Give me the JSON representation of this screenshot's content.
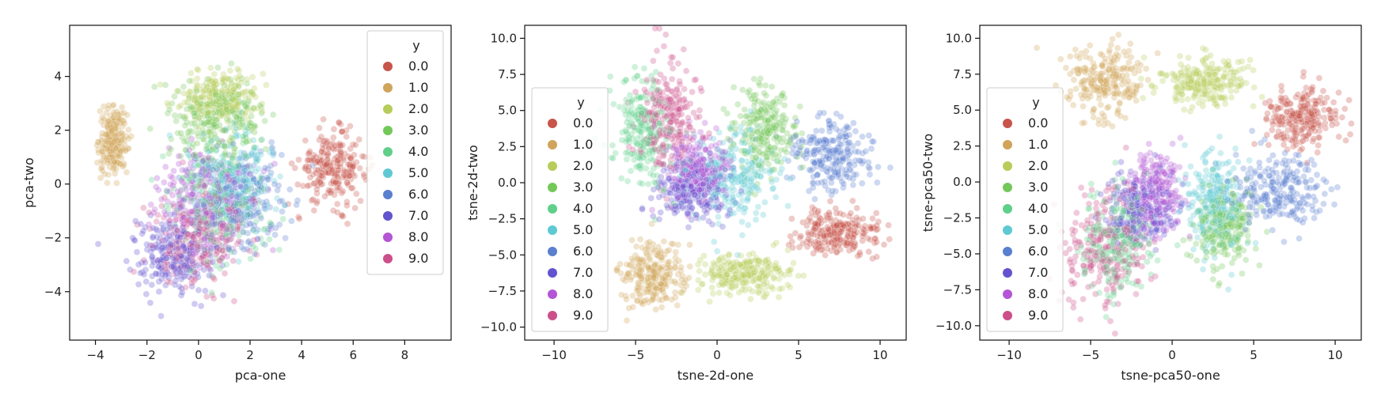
{
  "legend": {
    "title": "y",
    "labels": [
      "0.0",
      "1.0",
      "2.0",
      "3.0",
      "4.0",
      "5.0",
      "6.0",
      "7.0",
      "8.0",
      "9.0"
    ],
    "colors": [
      "#c8544a",
      "#d0a45a",
      "#b7cc5a",
      "#74c85a",
      "#5fcf8a",
      "#5ec9d3",
      "#5a7fcf",
      "#6353cf",
      "#b355d4",
      "#cc4f8a"
    ]
  },
  "chart_data": [
    {
      "type": "scatter",
      "title": "",
      "xlabel": "pca-one",
      "ylabel": "pca-two",
      "xlim": [
        -5,
        9.8
      ],
      "ylim": [
        -5.8,
        5.9
      ],
      "xticks": [
        -4,
        -2,
        0,
        2,
        4,
        6,
        8
      ],
      "yticks": [
        -4,
        -2,
        0,
        2,
        4
      ],
      "legend_position": "top-right",
      "point_alpha": 0.3,
      "series": [
        {
          "name": "0.0",
          "center": [
            5.2,
            0.6
          ],
          "spread": [
            1.1,
            1.1
          ]
        },
        {
          "name": "1.0",
          "center": [
            -3.3,
            1.6
          ],
          "spread": [
            0.45,
            1.0
          ]
        },
        {
          "name": "2.0",
          "center": [
            0.8,
            3.2
          ],
          "spread": [
            1.3,
            0.9
          ]
        },
        {
          "name": "3.0",
          "center": [
            0.8,
            2.4
          ],
          "spread": [
            1.4,
            1.3
          ]
        },
        {
          "name": "4.0",
          "center": [
            0.8,
            -0.8
          ],
          "spread": [
            1.6,
            1.8
          ]
        },
        {
          "name": "5.0",
          "center": [
            1.3,
            0.2
          ],
          "spread": [
            1.5,
            1.6
          ]
        },
        {
          "name": "6.0",
          "center": [
            1.6,
            -0.6
          ],
          "spread": [
            1.5,
            1.5
          ]
        },
        {
          "name": "7.0",
          "center": [
            -1.0,
            -2.6
          ],
          "spread": [
            1.3,
            1.2
          ]
        },
        {
          "name": "8.0",
          "center": [
            0.2,
            -0.6
          ],
          "spread": [
            1.5,
            1.6
          ]
        },
        {
          "name": "9.0",
          "center": [
            0.0,
            -2.0
          ],
          "spread": [
            1.5,
            1.5
          ]
        }
      ]
    },
    {
      "type": "scatter",
      "title": "",
      "xlabel": "tsne-2d-one",
      "ylabel": "tsne-2d-two",
      "xlim": [
        -11.8,
        11.6
      ],
      "ylim": [
        -10.9,
        10.9
      ],
      "xticks": [
        -10,
        -5,
        0,
        5,
        10
      ],
      "yticks": [
        -10.0,
        -7.5,
        -5.0,
        -2.5,
        0.0,
        2.5,
        5.0,
        7.5,
        10.0
      ],
      "legend_position": "center-left",
      "point_alpha": 0.3,
      "series": [
        {
          "name": "0.0",
          "center": [
            7.5,
            -3.5
          ],
          "spread": [
            2.1,
            1.4
          ]
        },
        {
          "name": "1.0",
          "center": [
            -4.0,
            -6.5
          ],
          "spread": [
            1.6,
            1.9
          ]
        },
        {
          "name": "2.0",
          "center": [
            1.8,
            -6.3
          ],
          "spread": [
            2.3,
            1.1
          ]
        },
        {
          "name": "3.0",
          "center": [
            2.8,
            3.5
          ],
          "spread": [
            1.6,
            2.5
          ]
        },
        {
          "name": "4.0",
          "center": [
            -4.5,
            3.5
          ],
          "spread": [
            1.5,
            3.0
          ]
        },
        {
          "name": "5.0",
          "center": [
            1.0,
            0.5
          ],
          "spread": [
            2.3,
            3.0
          ]
        },
        {
          "name": "6.0",
          "center": [
            7.0,
            2.0
          ],
          "spread": [
            2.2,
            2.1
          ]
        },
        {
          "name": "7.0",
          "center": [
            -1.5,
            -0.5
          ],
          "spread": [
            1.8,
            2.0
          ]
        },
        {
          "name": "8.0",
          "center": [
            -1.2,
            0.8
          ],
          "spread": [
            1.6,
            2.1
          ]
        },
        {
          "name": "9.0",
          "center": [
            -3.0,
            4.5
          ],
          "spread": [
            1.6,
            3.3
          ]
        }
      ]
    },
    {
      "type": "scatter",
      "title": "",
      "xlabel": "tsne-pca50-one",
      "ylabel": "tsne-pca50-two",
      "xlim": [
        -11.8,
        11.6
      ],
      "ylim": [
        -11.0,
        10.9
      ],
      "xticks": [
        -10,
        -5,
        0,
        5,
        10
      ],
      "yticks": [
        -10.0,
        -7.5,
        -5.0,
        -2.5,
        0.0,
        2.5,
        5.0,
        7.5,
        10.0
      ],
      "legend_position": "center-left",
      "point_alpha": 0.3,
      "series": [
        {
          "name": "0.0",
          "center": [
            7.8,
            4.4
          ],
          "spread": [
            1.8,
            1.8
          ]
        },
        {
          "name": "1.0",
          "center": [
            -4.2,
            7.0
          ],
          "spread": [
            2.1,
            2.2
          ]
        },
        {
          "name": "2.0",
          "center": [
            2.0,
            7.0
          ],
          "spread": [
            2.5,
            1.4
          ]
        },
        {
          "name": "3.0",
          "center": [
            3.2,
            -3.2
          ],
          "spread": [
            1.6,
            2.3
          ]
        },
        {
          "name": "4.0",
          "center": [
            -3.3,
            -4.0
          ],
          "spread": [
            1.8,
            3.1
          ]
        },
        {
          "name": "5.0",
          "center": [
            2.5,
            -1.5
          ],
          "spread": [
            1.6,
            3.0
          ]
        },
        {
          "name": "6.0",
          "center": [
            6.5,
            -0.5
          ],
          "spread": [
            2.3,
            2.1
          ]
        },
        {
          "name": "7.0",
          "center": [
            -2.0,
            -2.0
          ],
          "spread": [
            1.7,
            2.2
          ]
        },
        {
          "name": "8.0",
          "center": [
            -1.0,
            -0.8
          ],
          "spread": [
            1.3,
            2.5
          ]
        },
        {
          "name": "9.0",
          "center": [
            -4.2,
            -4.5
          ],
          "spread": [
            2.1,
            3.3
          ]
        }
      ]
    }
  ]
}
